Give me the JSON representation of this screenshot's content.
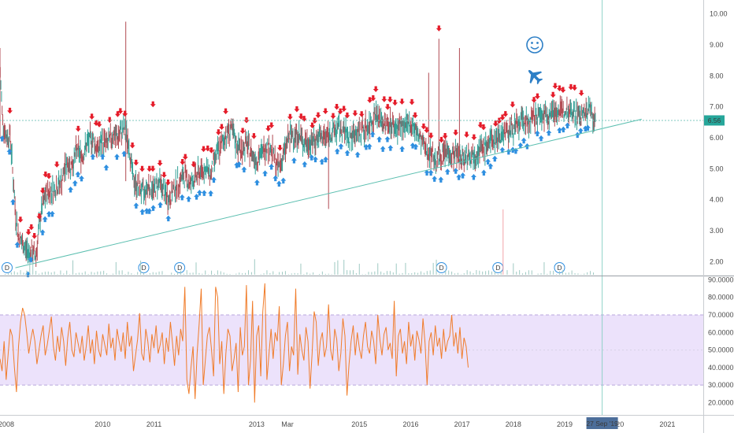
{
  "chart_data": [
    {
      "type": "candlestick",
      "price_axis": {
        "ticks": [
          2.0,
          3.0,
          4.0,
          5.0,
          6.0,
          7.0,
          8.0,
          9.0,
          10.0
        ],
        "tick_labels": [
          "2.00",
          "3.00",
          "4.00",
          "5.00",
          "6.00",
          "7.00",
          "8.00",
          "9.00",
          "10.00"
        ],
        "range": [
          1.55,
          10.45
        ]
      },
      "time_axis": {
        "range": [
          2008.0,
          2021.7
        ],
        "ticks": [
          {
            "x": 2008.0,
            "label": "2008"
          },
          {
            "x": 2010.0,
            "label": "2010"
          },
          {
            "x": 2011.0,
            "label": "2011"
          },
          {
            "x": 2013.0,
            "label": "2013"
          },
          {
            "x": 2013.6,
            "label": "Mar"
          },
          {
            "x": 2015.0,
            "label": "2015"
          },
          {
            "x": 2016.0,
            "label": "2016"
          },
          {
            "x": 2017.0,
            "label": "2017"
          },
          {
            "x": 2018.0,
            "label": "2018"
          },
          {
            "x": 2019.0,
            "label": "2019"
          },
          {
            "x": 2020.0,
            "label": "2020"
          },
          {
            "x": 2021.0,
            "label": "2021"
          }
        ],
        "cursor_label": "27 Sep '19",
        "cursor_x": 2019.73
      },
      "last_price": 6.56,
      "last_price_label": "6.56",
      "horizontal_line": 6.56,
      "trend_line": {
        "from": [
          2008.3,
          1.8
        ],
        "to": [
          2020.5,
          6.6
        ]
      },
      "price_path": [
        [
          2008.0,
          8.2
        ],
        [
          2008.05,
          6.6
        ],
        [
          2008.12,
          6.0
        ],
        [
          2008.2,
          6.1
        ],
        [
          2008.3,
          3.6
        ],
        [
          2008.35,
          2.9
        ],
        [
          2008.42,
          2.6
        ],
        [
          2008.5,
          2.4
        ],
        [
          2008.6,
          2.3
        ],
        [
          2008.7,
          2.2
        ],
        [
          2008.8,
          3.6
        ],
        [
          2008.9,
          4.2
        ],
        [
          2009.0,
          4.3
        ],
        [
          2009.1,
          4.4
        ],
        [
          2009.2,
          4.6
        ],
        [
          2009.3,
          5.2
        ],
        [
          2009.4,
          5.1
        ],
        [
          2009.5,
          5.6
        ],
        [
          2009.6,
          5.4
        ],
        [
          2009.7,
          5.8
        ],
        [
          2009.8,
          6.0
        ],
        [
          2009.9,
          5.6
        ],
        [
          2010.0,
          5.9
        ],
        [
          2010.1,
          5.8
        ],
        [
          2010.2,
          6.1
        ],
        [
          2010.3,
          6.0
        ],
        [
          2010.4,
          6.3
        ],
        [
          2010.5,
          5.9
        ],
        [
          2010.6,
          4.6
        ],
        [
          2010.7,
          4.4
        ],
        [
          2010.8,
          4.2
        ],
        [
          2010.9,
          4.5
        ],
        [
          2011.0,
          4.3
        ],
        [
          2011.1,
          4.6
        ],
        [
          2011.2,
          4.2
        ],
        [
          2011.3,
          4.0
        ],
        [
          2011.4,
          4.4
        ],
        [
          2011.5,
          4.6
        ],
        [
          2011.6,
          4.8
        ],
        [
          2011.7,
          4.5
        ],
        [
          2011.8,
          4.7
        ],
        [
          2011.9,
          4.9
        ],
        [
          2012.0,
          5.0
        ],
        [
          2012.1,
          4.8
        ],
        [
          2012.2,
          5.4
        ],
        [
          2012.3,
          5.7
        ],
        [
          2012.4,
          6.1
        ],
        [
          2012.5,
          6.3
        ],
        [
          2012.6,
          5.8
        ],
        [
          2012.7,
          5.6
        ],
        [
          2012.8,
          5.8
        ],
        [
          2012.9,
          5.5
        ],
        [
          2013.0,
          5.3
        ],
        [
          2013.1,
          5.5
        ],
        [
          2013.2,
          5.8
        ],
        [
          2013.3,
          5.6
        ],
        [
          2013.4,
          5.0
        ],
        [
          2013.5,
          5.3
        ],
        [
          2013.6,
          5.9
        ],
        [
          2013.7,
          6.1
        ],
        [
          2013.8,
          6.1
        ],
        [
          2013.9,
          5.9
        ],
        [
          2014.0,
          5.8
        ],
        [
          2014.1,
          5.9
        ],
        [
          2014.2,
          6.0
        ],
        [
          2014.3,
          6.0
        ],
        [
          2014.4,
          6.1
        ],
        [
          2014.5,
          6.2
        ],
        [
          2014.6,
          6.3
        ],
        [
          2014.7,
          6.2
        ],
        [
          2014.8,
          6.0
        ],
        [
          2014.9,
          6.1
        ],
        [
          2015.0,
          6.2
        ],
        [
          2015.1,
          6.3
        ],
        [
          2015.2,
          6.4
        ],
        [
          2015.3,
          6.8
        ],
        [
          2015.4,
          6.6
        ],
        [
          2015.5,
          6.4
        ],
        [
          2015.6,
          6.5
        ],
        [
          2015.7,
          6.3
        ],
        [
          2015.8,
          6.4
        ],
        [
          2015.9,
          6.3
        ],
        [
          2016.0,
          6.5
        ],
        [
          2016.1,
          6.2
        ],
        [
          2016.2,
          5.9
        ],
        [
          2016.3,
          5.6
        ],
        [
          2016.4,
          5.5
        ],
        [
          2016.5,
          5.3
        ],
        [
          2016.6,
          5.4
        ],
        [
          2016.7,
          5.6
        ],
        [
          2016.8,
          5.4
        ],
        [
          2016.9,
          5.5
        ],
        [
          2017.0,
          5.3
        ],
        [
          2017.1,
          5.5
        ],
        [
          2017.2,
          5.4
        ],
        [
          2017.3,
          5.6
        ],
        [
          2017.4,
          5.6
        ],
        [
          2017.5,
          5.8
        ],
        [
          2017.6,
          5.9
        ],
        [
          2017.7,
          6.0
        ],
        [
          2017.8,
          6.2
        ],
        [
          2017.9,
          6.2
        ],
        [
          2018.0,
          6.3
        ],
        [
          2018.1,
          6.4
        ],
        [
          2018.2,
          6.6
        ],
        [
          2018.3,
          6.5
        ],
        [
          2018.4,
          6.6
        ],
        [
          2018.5,
          6.8
        ],
        [
          2018.6,
          6.7
        ],
        [
          2018.7,
          6.8
        ],
        [
          2018.8,
          6.9
        ],
        [
          2018.9,
          6.8
        ],
        [
          2019.0,
          6.9
        ],
        [
          2019.1,
          6.9
        ],
        [
          2019.2,
          6.8
        ],
        [
          2019.3,
          6.7
        ],
        [
          2019.4,
          6.8
        ],
        [
          2019.5,
          6.9
        ],
        [
          2019.55,
          6.7
        ],
        [
          2019.6,
          6.56
        ]
      ],
      "dividend_markers": [
        {
          "x": 2008.0,
          "label": "D"
        },
        {
          "x": 2010.8,
          "label": "D"
        },
        {
          "x": 2011.5,
          "label": "D"
        },
        {
          "x": 2016.6,
          "label": "D"
        },
        {
          "x": 2017.7,
          "label": "D"
        },
        {
          "x": 2018.9,
          "label": "D"
        }
      ],
      "annotations": [
        "smiley-face-icon",
        "airplane-icon"
      ],
      "colors": {
        "up_wick": "#2f9e94",
        "down_wick": "#b14a52",
        "trend_line": "#5cbfb0",
        "sell_arrow": "#e51c2a",
        "buy_arrow": "#2e8fe0",
        "price_label_bg": "#26a69a",
        "icons": "#2d7fc6",
        "cursor_label_bg": "#4c6e9a"
      }
    },
    {
      "type": "line",
      "y_axis": {
        "ticks": [
          20,
          30,
          40,
          50,
          60,
          70,
          80,
          90
        ],
        "tick_labels": [
          "20.0000",
          "30.0000",
          "40.0000",
          "50.0000",
          "60.0000",
          "70.0000",
          "80.0000",
          "90.0000"
        ],
        "range": [
          13,
          92
        ]
      },
      "band": [
        30,
        70
      ],
      "colors": {
        "line": "#f07c2a",
        "band_fill": "#ece2fb",
        "band_border": "#b8a6dc"
      },
      "series": [
        {
          "x_start": 2008.0,
          "x_step": 0.04,
          "values": [
            45,
            38,
            55,
            33,
            48,
            62,
            58,
            40,
            26,
            52,
            66,
            74,
            70,
            60,
            48,
            56,
            62,
            55,
            42,
            50,
            58,
            64,
            47,
            53,
            61,
            69,
            52,
            44,
            58,
            49,
            63,
            55,
            41,
            57,
            66,
            50,
            46,
            60,
            54,
            48,
            58,
            44,
            52,
            64,
            48,
            56,
            42,
            61,
            50,
            46,
            59,
            53,
            47,
            65,
            51,
            57,
            44,
            62,
            55,
            49,
            60,
            45,
            66,
            52,
            58,
            38,
            47,
            56,
            71,
            48,
            44,
            62,
            55,
            43,
            59,
            51,
            64,
            48,
            53,
            60,
            42,
            57,
            49,
            66,
            54,
            41,
            58,
            47,
            62,
            55,
            86,
            33,
            25,
            40,
            52,
            22,
            48,
            65,
            85,
            30,
            44,
            58,
            63,
            50,
            35,
            86,
            80,
            42,
            55,
            25,
            48,
            62,
            58,
            38,
            45,
            54,
            26,
            63,
            47,
            52,
            87,
            30,
            44,
            78,
            20,
            58,
            64,
            35,
            72,
            88,
            33,
            48,
            62,
            45,
            60,
            55,
            75,
            30,
            42,
            58,
            66,
            38,
            52,
            47,
            85,
            36,
            59,
            50,
            44,
            63,
            55,
            28,
            48,
            72,
            66,
            41,
            55,
            60,
            46,
            52,
            76,
            50,
            44,
            62,
            56,
            38,
            48,
            68,
            58,
            24,
            42,
            55,
            64,
            47,
            60,
            51,
            45,
            58,
            66,
            52,
            48,
            61,
            55,
            42,
            70,
            56,
            47,
            59,
            63,
            50,
            54,
            45,
            78,
            35,
            58,
            62,
            48,
            55,
            42,
            66,
            52,
            59,
            44,
            61,
            56,
            48,
            68,
            54,
            30,
            55,
            60,
            47,
            64,
            52,
            57,
            45,
            62,
            49,
            55,
            58,
            70,
            52,
            60,
            48,
            63,
            45,
            57,
            52,
            40
          ]
        }
      ]
    }
  ]
}
